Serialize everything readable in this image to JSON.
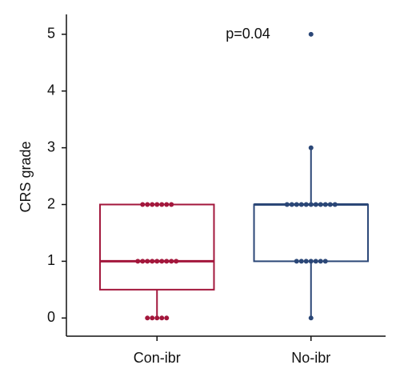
{
  "chart_data": {
    "type": "box",
    "y_label": "CRS grade",
    "annotation": "p=0.04",
    "categories": [
      "Con-ibr",
      "No-ibr"
    ],
    "ylim": [
      -0.32,
      5.35
    ],
    "yticks": [
      0,
      1,
      2,
      3,
      4,
      5
    ],
    "series": [
      {
        "name": "Con-ibr",
        "color": "#a3173c",
        "q1": 0.5,
        "median": 1,
        "q3": 2,
        "whisker_low": 0,
        "whisker_high": 2,
        "points": [
          0,
          0,
          0,
          0,
          0,
          1,
          1,
          1,
          1,
          1,
          1,
          1,
          1,
          1,
          2,
          2,
          2,
          2,
          2,
          2,
          2
        ]
      },
      {
        "name": "No-ibr",
        "color": "#2b4777",
        "q1": 1,
        "median": 2,
        "q3": 2,
        "whisker_low": 0,
        "whisker_high": 3,
        "points": [
          0,
          1,
          1,
          1,
          1,
          1,
          1,
          1,
          2,
          2,
          2,
          2,
          2,
          2,
          2,
          2,
          2,
          2,
          2,
          3,
          5
        ]
      }
    ]
  }
}
